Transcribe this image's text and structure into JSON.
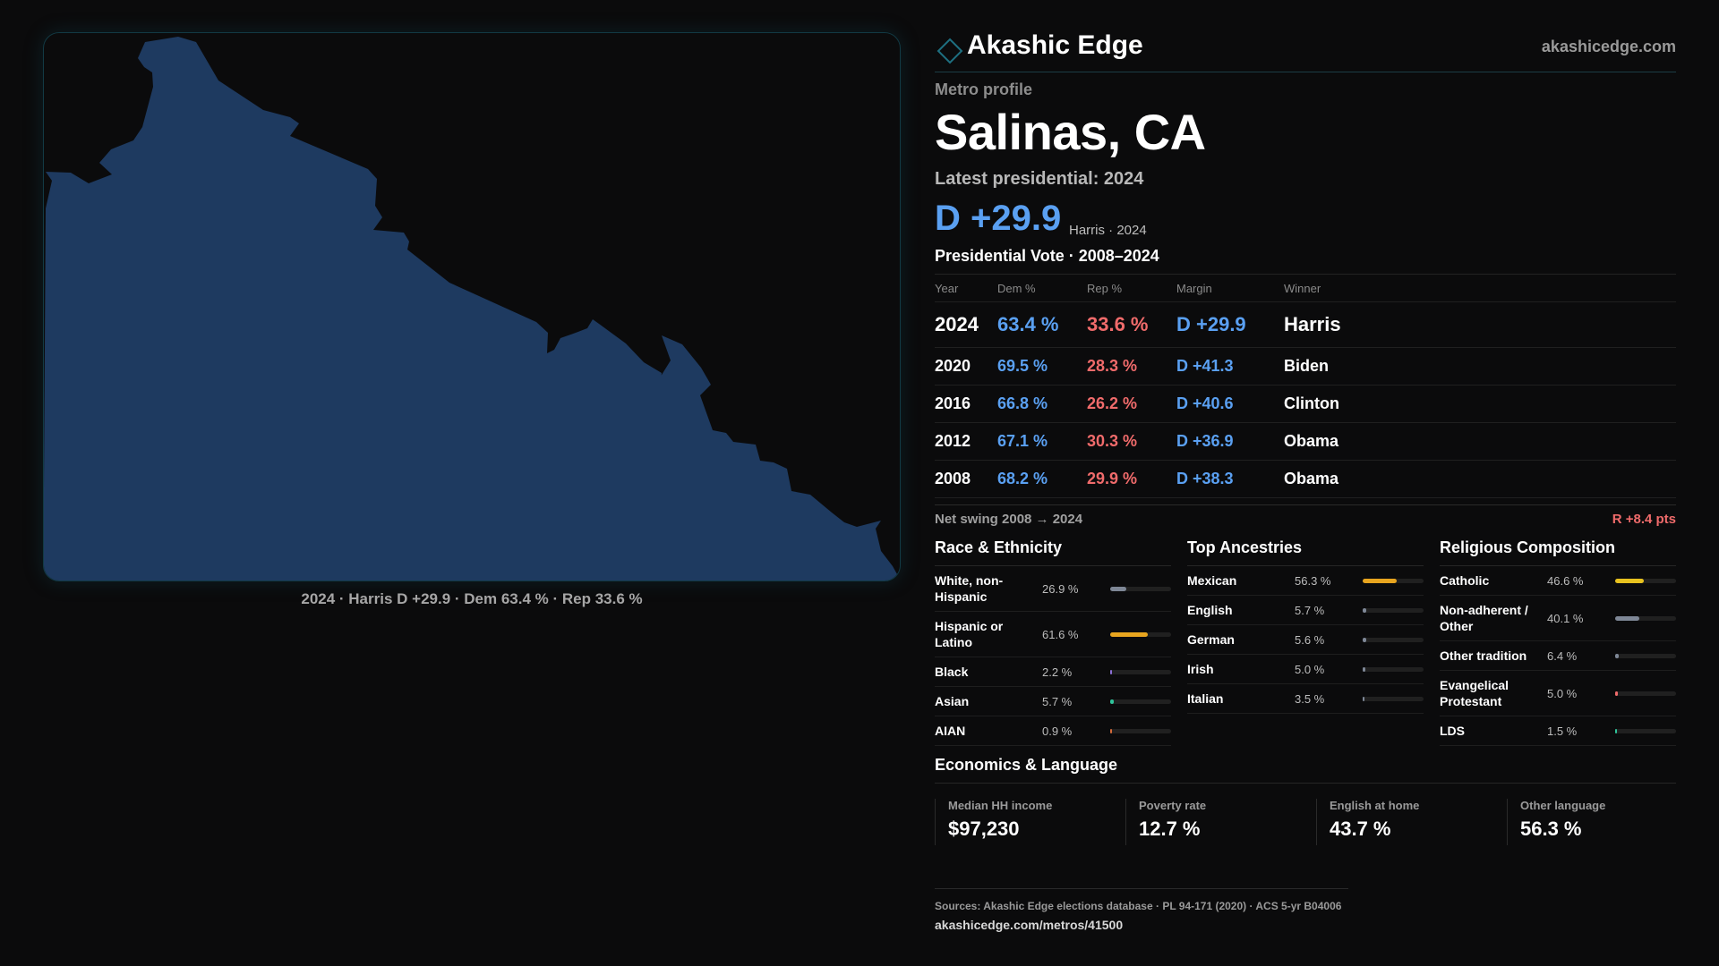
{
  "map": {
    "caption": "2024 · Harris D +29.9 · Dem 63.4 % · Rep 33.6 %",
    "fill_color": "#1e3a60",
    "border_color": "#123a44"
  },
  "brand": {
    "name": "Akashic Edge",
    "url": "akashicedge.com",
    "logo_icon": "diamond-outline-icon"
  },
  "profile": {
    "eyebrow": "Metro profile",
    "title": "Salinas, CA",
    "latest": "Latest presidential: 2024",
    "margin": "D +29.9",
    "margin_sub": "Harris · 2024"
  },
  "votes": {
    "title": "Presidential Vote · 2008–2024",
    "headers": {
      "year": "Year",
      "dem": "Dem %",
      "rep": "Rep %",
      "margin": "Margin",
      "winner": "Winner"
    },
    "rows": [
      {
        "year": "2024",
        "dem": "63.4 %",
        "rep": "33.6 %",
        "margin": "D +29.9",
        "winner": "Harris"
      },
      {
        "year": "2020",
        "dem": "69.5 %",
        "rep": "28.3 %",
        "margin": "D +41.3",
        "winner": "Biden"
      },
      {
        "year": "2016",
        "dem": "66.8 %",
        "rep": "26.2 %",
        "margin": "D +40.6",
        "winner": "Clinton"
      },
      {
        "year": "2012",
        "dem": "67.1 %",
        "rep": "30.3 %",
        "margin": "D +36.9",
        "winner": "Obama"
      },
      {
        "year": "2008",
        "dem": "68.2 %",
        "rep": "29.9 %",
        "margin": "D +38.3",
        "winner": "Obama"
      }
    ],
    "colors": {
      "dem": "#5aa0f2",
      "rep": "#f06b6b"
    }
  },
  "swing": {
    "label": "Net swing 2008 → 2024",
    "value": "R +8.4 pts"
  },
  "race": {
    "title": "Race & Ethnicity",
    "rows": [
      {
        "label": "White, non-Hispanic",
        "value": "26.9 %",
        "pct": 26.9,
        "color": "#7e8796"
      },
      {
        "label": "Hispanic or Latino",
        "value": "61.6 %",
        "pct": 61.6,
        "color": "#e8a51f"
      },
      {
        "label": "Black",
        "value": "2.2 %",
        "pct": 2.2,
        "color": "#8c6fd6"
      },
      {
        "label": "Asian",
        "value": "5.7 %",
        "pct": 5.7,
        "color": "#2fc49b"
      },
      {
        "label": "AIAN",
        "value": "0.9 %",
        "pct": 0.9,
        "color": "#d46a3a"
      }
    ]
  },
  "ancestry": {
    "title": "Top Ancestries",
    "rows": [
      {
        "label": "Mexican",
        "value": "56.3 %",
        "pct": 56.3,
        "color": "#e8a51f"
      },
      {
        "label": "English",
        "value": "5.7 %",
        "pct": 5.7,
        "color": "#7e8796"
      },
      {
        "label": "German",
        "value": "5.6 %",
        "pct": 5.6,
        "color": "#7e8796"
      },
      {
        "label": "Irish",
        "value": "5.0 %",
        "pct": 5.0,
        "color": "#7e8796"
      },
      {
        "label": "Italian",
        "value": "3.5 %",
        "pct": 3.5,
        "color": "#7e8796"
      }
    ]
  },
  "religion": {
    "title": "Religious Composition",
    "rows": [
      {
        "label": "Catholic",
        "value": "46.6 %",
        "pct": 46.6,
        "color": "#e8c21f"
      },
      {
        "label": "Non-adherent / Other",
        "value": "40.1 %",
        "pct": 40.1,
        "color": "#7e8796"
      },
      {
        "label": "Other tradition",
        "value": "6.4 %",
        "pct": 6.4,
        "color": "#7e8796"
      },
      {
        "label": "Evangelical Protestant",
        "value": "5.0 %",
        "pct": 5.0,
        "color": "#f06b6b"
      },
      {
        "label": "LDS",
        "value": "1.5 %",
        "pct": 1.5,
        "color": "#2fc49b"
      }
    ]
  },
  "economics": {
    "title": "Economics & Language",
    "stats": [
      {
        "label": "Median HH income",
        "value": "$97,230"
      },
      {
        "label": "Poverty rate",
        "value": "12.7 %"
      },
      {
        "label": "English at home",
        "value": "43.7 %"
      },
      {
        "label": "Other language",
        "value": "56.3 %"
      }
    ]
  },
  "footer": {
    "sources": "Sources: Akashic Edge elections database · PL 94-171 (2020) · ACS 5-yr B04006",
    "url": "akashicedge.com/metros/41500"
  }
}
